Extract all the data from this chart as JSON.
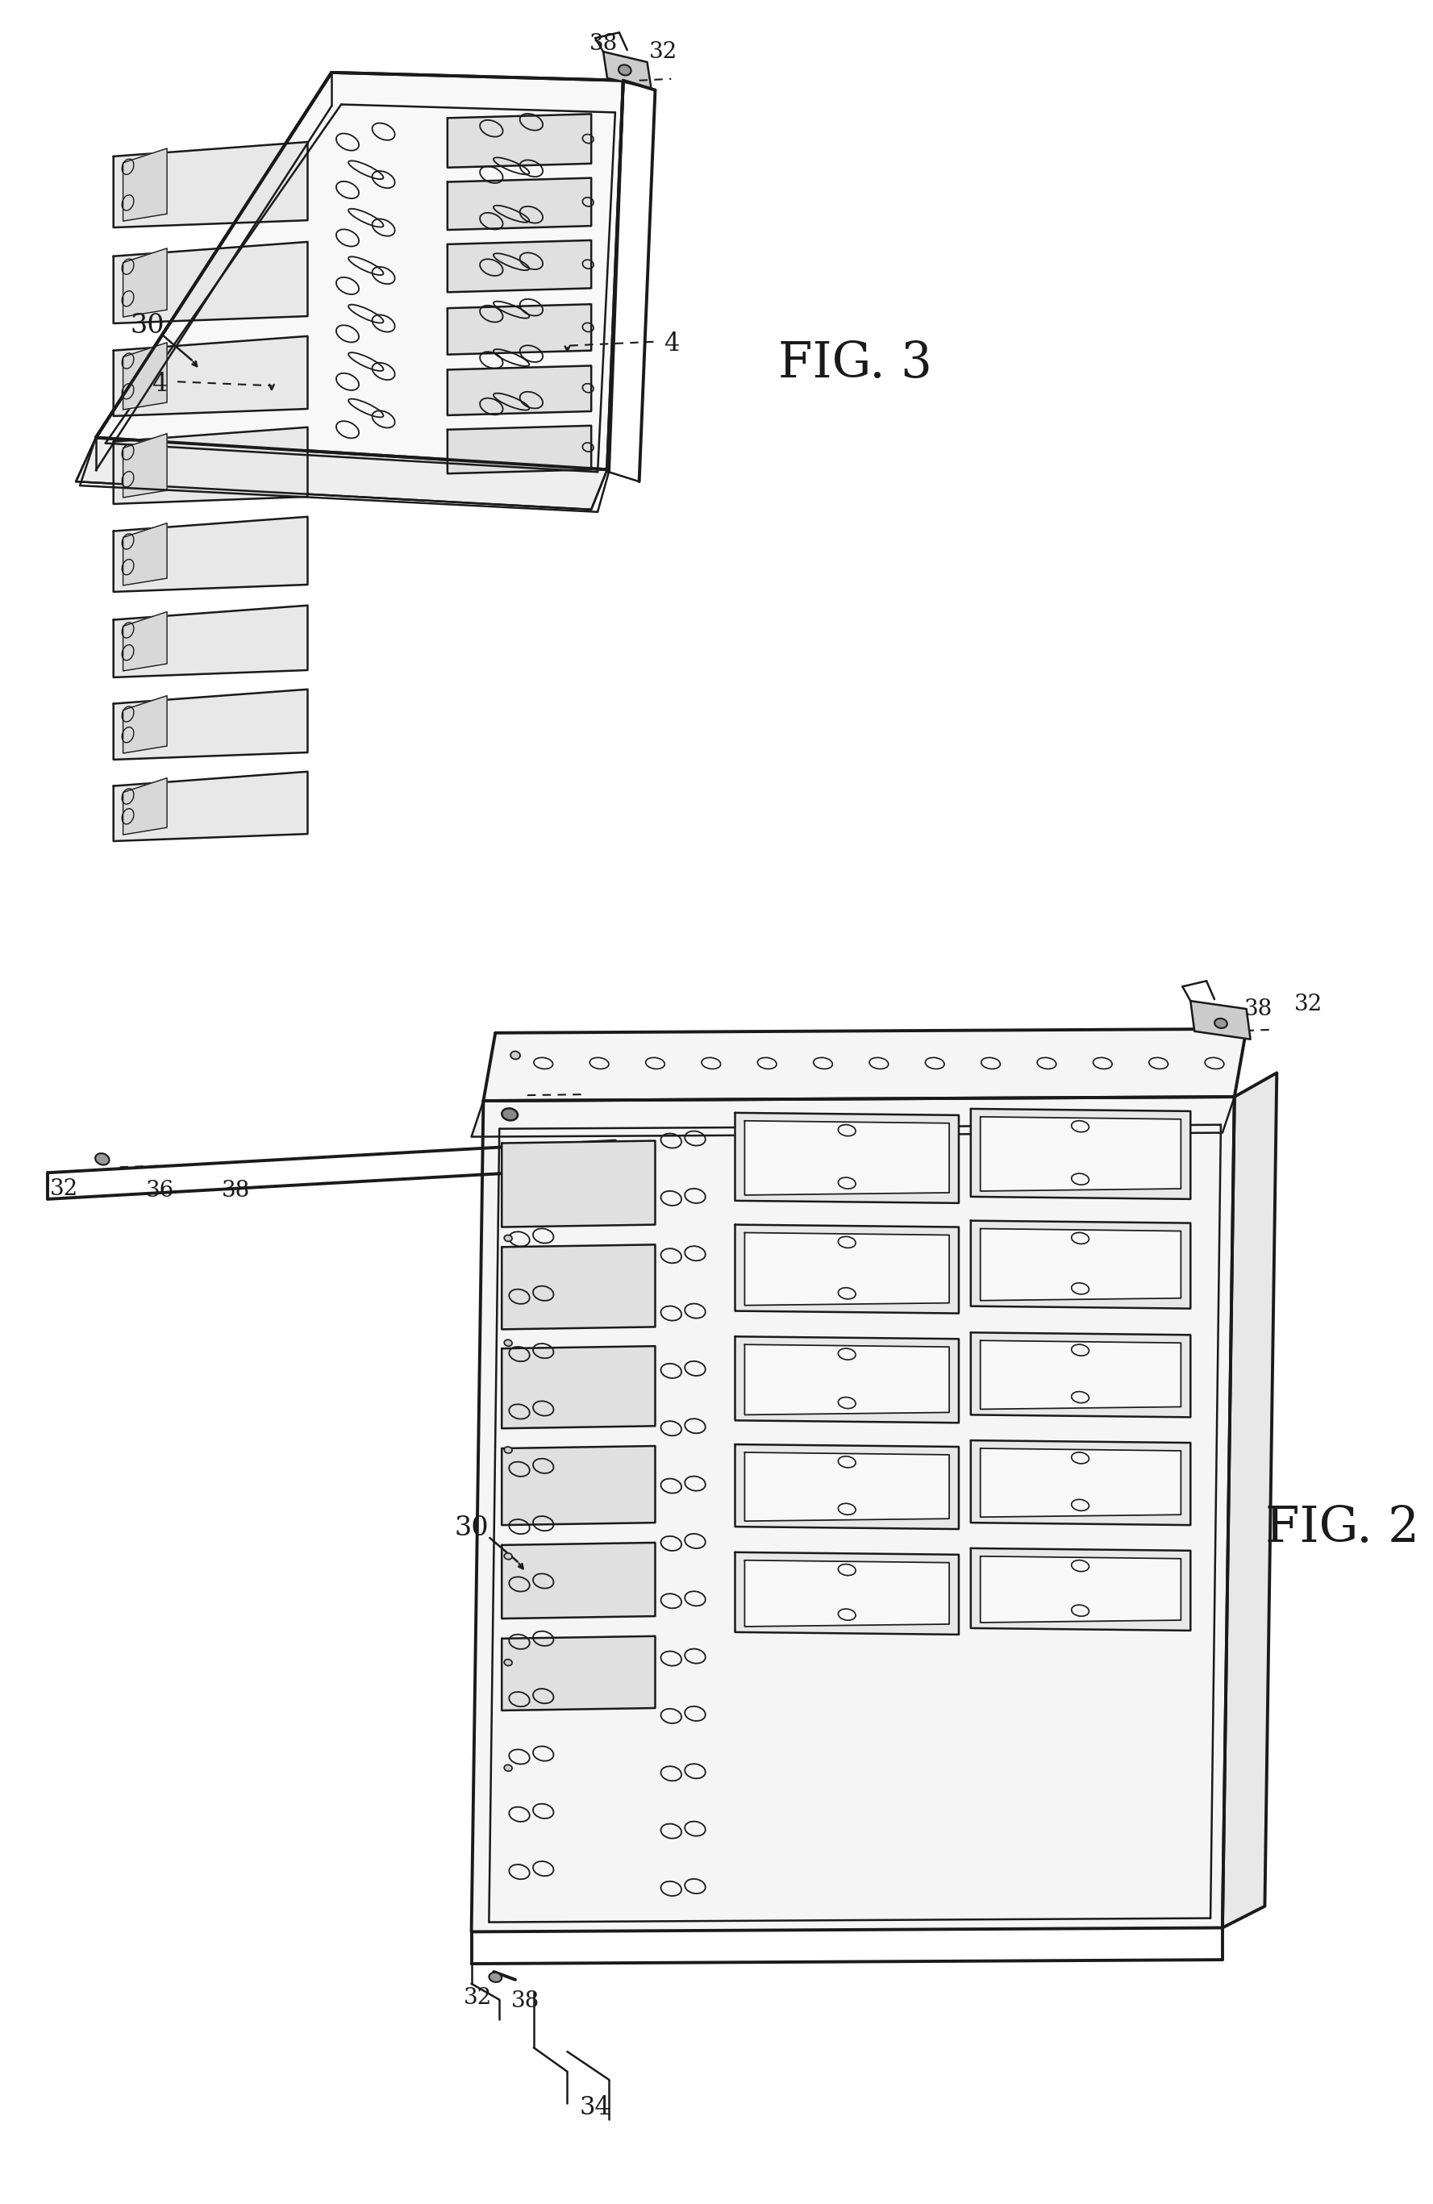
{
  "bg_color": "#ffffff",
  "lc": "#1a1a1a",
  "fig3_label": "FIG. 3",
  "fig2_label": "FIG. 2",
  "lw_outer": 2.8,
  "lw_inner": 1.8,
  "lw_thin": 1.2
}
